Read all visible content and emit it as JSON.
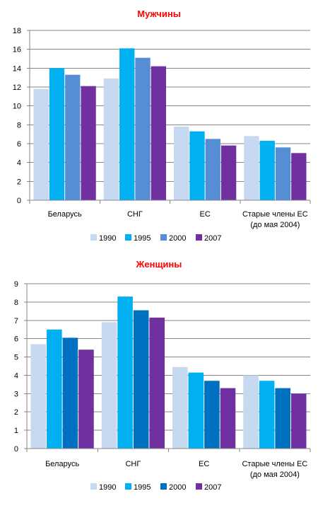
{
  "chart_data": [
    {
      "type": "bar",
      "title": "Мужчины",
      "xlabel": "",
      "ylabel": "",
      "categories": [
        "Беларусь",
        "СНГ",
        "ЕС",
        "Старые члены ЕС\n(до мая 2004)"
      ],
      "ylim": [
        0,
        18
      ],
      "yticks": [
        0,
        2,
        4,
        6,
        8,
        10,
        12,
        14,
        16,
        18
      ],
      "grid": true,
      "legend_position": "bottom",
      "series": [
        {
          "name": "1990",
          "color": "#c6d9f1",
          "values": [
            11.8,
            12.9,
            7.8,
            6.8
          ]
        },
        {
          "name": "1995",
          "color": "#00b0f0",
          "values": [
            14.0,
            16.1,
            7.3,
            6.3
          ]
        },
        {
          "name": "2000",
          "color": "#558ed5",
          "values": [
            13.3,
            15.1,
            6.5,
            5.6
          ]
        },
        {
          "name": "2007",
          "color": "#7030a0",
          "values": [
            12.1,
            14.2,
            5.8,
            5.0
          ]
        }
      ]
    },
    {
      "type": "bar",
      "title": "Женщины",
      "xlabel": "",
      "ylabel": "",
      "categories": [
        "Беларусь",
        "СНГ",
        "ЕС",
        "Старые члены ЕС\n(до мая 2004)"
      ],
      "ylim": [
        0,
        9
      ],
      "yticks": [
        0,
        1,
        2,
        3,
        4,
        5,
        6,
        7,
        8,
        9
      ],
      "grid": true,
      "legend_position": "bottom",
      "series": [
        {
          "name": "1990",
          "color": "#c6d9f1",
          "values": [
            5.7,
            6.9,
            4.45,
            4.0
          ]
        },
        {
          "name": "1995",
          "color": "#00b0f0",
          "values": [
            6.5,
            8.3,
            4.15,
            3.7
          ]
        },
        {
          "name": "2000",
          "color": "#0070c0",
          "values": [
            6.05,
            7.55,
            3.7,
            3.3
          ]
        },
        {
          "name": "2007",
          "color": "#7030a0",
          "values": [
            5.4,
            7.15,
            3.3,
            3.0
          ]
        }
      ]
    }
  ],
  "colors": {
    "title": "#ff0000",
    "grid": "#868686",
    "text": "#000000"
  }
}
